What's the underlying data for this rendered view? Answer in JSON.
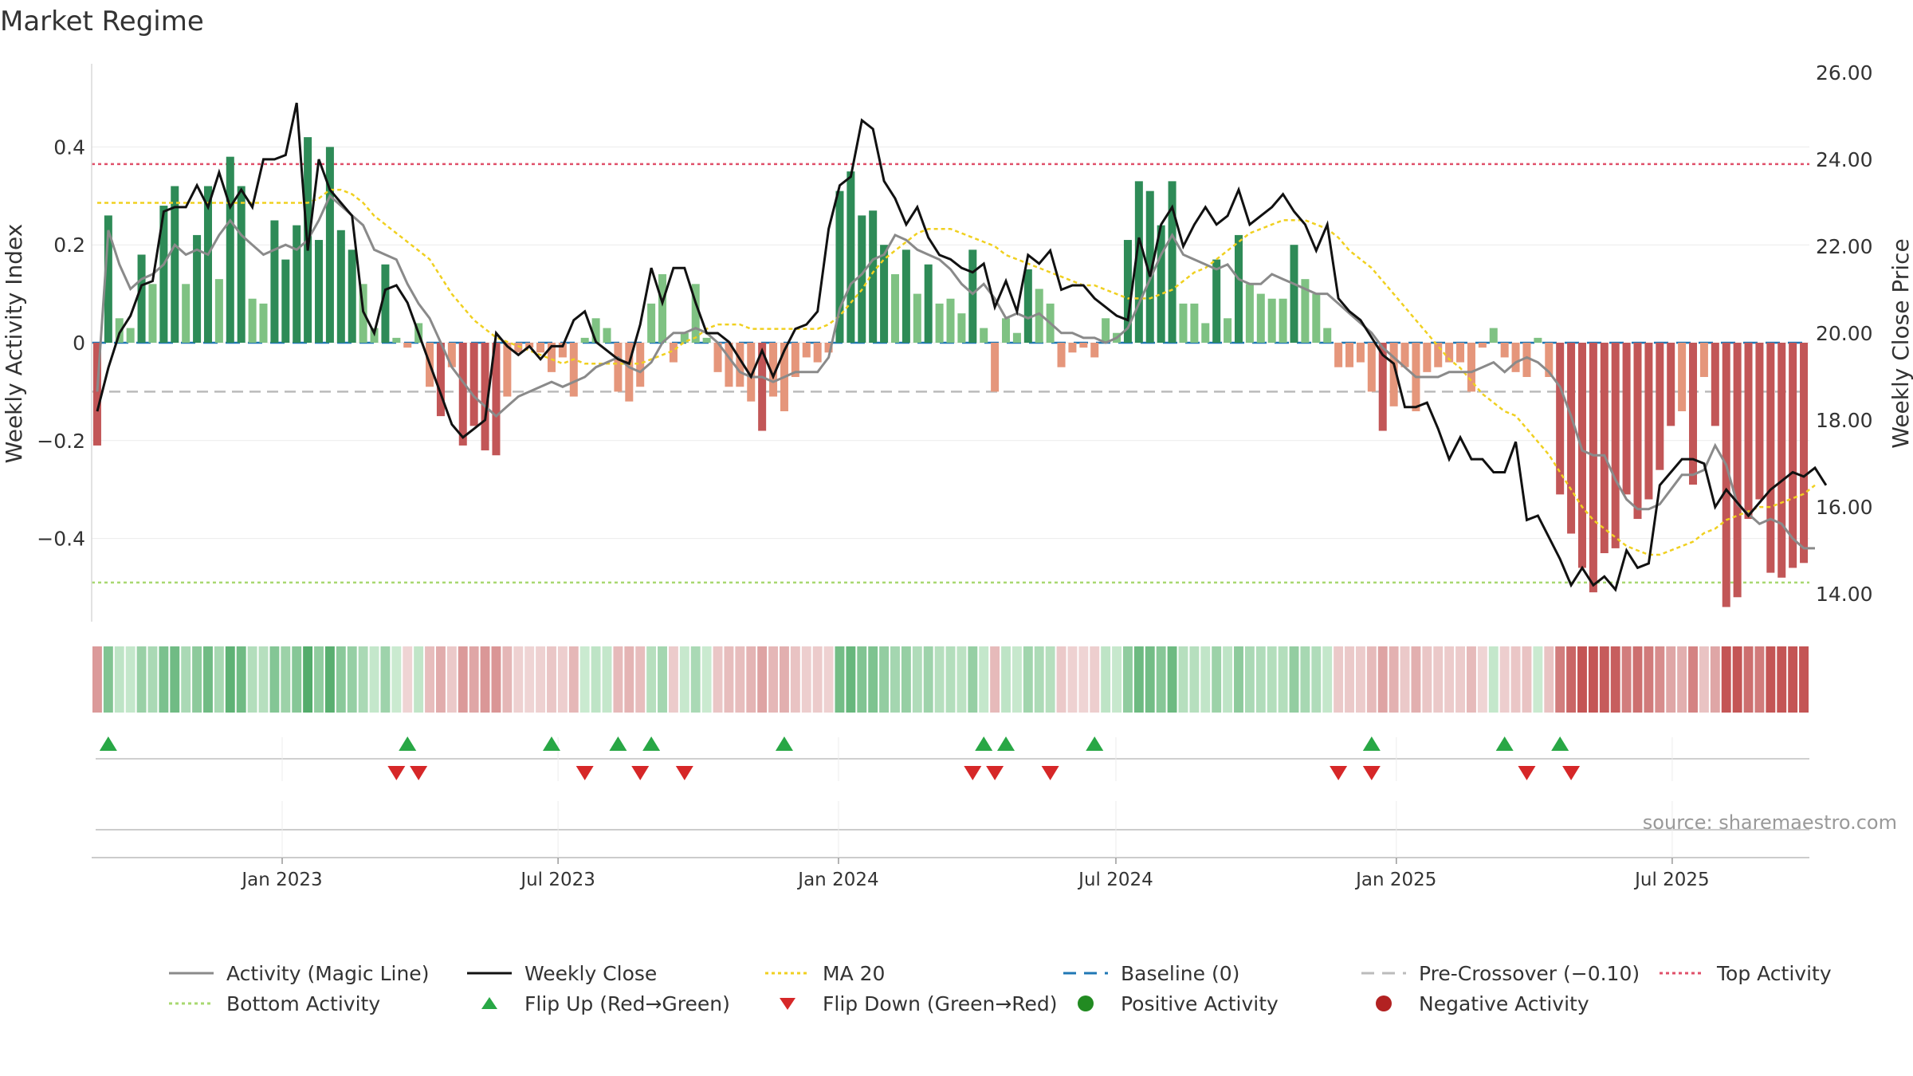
{
  "title": "Market Regime",
  "source": "source: sharemaestro.com",
  "colors": {
    "pos_dark": "#2e8b57",
    "pos_light": "#7fc283",
    "neg_dark": "#c25657",
    "neg_light": "#e5967b",
    "close": "#111111",
    "magic": "#8a8a8a",
    "ma": "#f0d020",
    "baseline": "#1f77b4",
    "precross": "#bbbbbb",
    "top": "#e0506a",
    "bottom": "#a8d870",
    "flip_up": "#28a745",
    "flip_down": "#d62728",
    "pos_dot": "#228b22",
    "neg_dot": "#b22222"
  },
  "legend": [
    {
      "key": "magic",
      "label": "Activity (Magic Line)",
      "style": "line"
    },
    {
      "key": "close",
      "label": "Weekly Close",
      "style": "line"
    },
    {
      "key": "ma",
      "label": "MA 20",
      "style": "dotted"
    },
    {
      "key": "baseline",
      "label": "Baseline (0)",
      "style": "dashed"
    },
    {
      "key": "precross",
      "label": "Pre-Crossover (−0.10)",
      "style": "dashed"
    },
    {
      "key": "top",
      "label": "Top Activity",
      "style": "dotted"
    },
    {
      "key": "bottom",
      "label": "Bottom Activity",
      "style": "dotted"
    },
    {
      "key": "flip_up",
      "label": "Flip Up (Red→Green)",
      "style": "tri-up"
    },
    {
      "key": "flip_down",
      "label": "Flip Down (Green→Red)",
      "style": "tri-down"
    },
    {
      "key": "pos_dot",
      "label": "Positive Activity",
      "style": "dot"
    },
    {
      "key": "neg_dot",
      "label": "Negative Activity",
      "style": "dot"
    }
  ],
  "chart_data": {
    "type": "bar",
    "title": "Market Regime",
    "ylabel_left": "Weekly Activity Index",
    "ylabel_right": "Weekly Close Price",
    "ylim_left": [
      -0.57,
      0.57
    ],
    "ylim_right": [
      13.36,
      26.2
    ],
    "yticks_left": [
      0.4,
      0.2,
      0,
      -0.2,
      -0.4
    ],
    "ytick_labels_left": [
      "0.4",
      "0.2",
      "0",
      "−0.2",
      "−0.4"
    ],
    "yticks_right": [
      26,
      24,
      22,
      20,
      18,
      16,
      14
    ],
    "ytick_labels_right": [
      "26.00",
      "24.00",
      "22.00",
      "20.00",
      "18.00",
      "16.00",
      "14.00"
    ],
    "x_start": "2022-08-29",
    "x_end": "2025-09-29",
    "xticks": [
      {
        "date": "2023-01-01",
        "label": "Jan 2023"
      },
      {
        "date": "2023-07-01",
        "label": "Jul 2023"
      },
      {
        "date": "2024-01-01",
        "label": "Jan 2024"
      },
      {
        "date": "2024-07-01",
        "label": "Jul 2024"
      },
      {
        "date": "2025-01-01",
        "label": "Jan 2025"
      },
      {
        "date": "2025-07-01",
        "label": "Jul 2025"
      }
    ],
    "reference_lines": {
      "baseline": 0,
      "pre_crossover": -0.1,
      "top_activity": 0.365,
      "bottom_activity": -0.49
    },
    "activity": [
      -0.21,
      0.26,
      0.05,
      0.03,
      0.18,
      0.12,
      0.28,
      0.32,
      0.12,
      0.22,
      0.32,
      0.13,
      0.38,
      0.32,
      0.09,
      0.08,
      0.25,
      0.17,
      0.24,
      0.42,
      0.21,
      0.4,
      0.23,
      0.19,
      0.12,
      0.03,
      0.16,
      0.01,
      -0.01,
      0.04,
      -0.09,
      -0.15,
      -0.05,
      -0.21,
      -0.17,
      -0.22,
      -0.23,
      -0.11,
      -0.02,
      -0.01,
      -0.02,
      -0.06,
      -0.03,
      -0.11,
      0.01,
      0.05,
      0.03,
      -0.1,
      -0.12,
      -0.09,
      0.08,
      0.14,
      -0.04,
      0.02,
      0.12,
      0.01,
      -0.06,
      -0.09,
      -0.09,
      -0.12,
      -0.18,
      -0.11,
      -0.14,
      -0.07,
      -0.03,
      -0.04,
      -0.02,
      0.31,
      0.35,
      0.26,
      0.27,
      0.2,
      0.14,
      0.19,
      0.1,
      0.16,
      0.08,
      0.09,
      0.06,
      0.19,
      0.03,
      -0.1,
      0.05,
      0.02,
      0.15,
      0.11,
      0.08,
      -0.05,
      -0.02,
      -0.01,
      -0.03,
      0.05,
      0.02,
      0.21,
      0.33,
      0.31,
      0.24,
      0.33,
      0.08,
      0.08,
      0.04,
      0.17,
      0.05,
      0.22,
      0.12,
      0.1,
      0.09,
      0.09,
      0.2,
      0.13,
      0.1,
      0.03,
      -0.05,
      -0.05,
      -0.04,
      -0.1,
      -0.18,
      -0.13,
      -0.05,
      -0.14,
      -0.06,
      -0.05,
      -0.04,
      -0.04,
      -0.1,
      -0.01,
      0.03,
      -0.03,
      -0.06,
      -0.07,
      0.01,
      -0.07,
      -0.31,
      -0.39,
      -0.46,
      -0.51,
      -0.43,
      -0.42,
      -0.31,
      -0.36,
      -0.32,
      -0.26,
      -0.17,
      -0.14,
      -0.29,
      -0.07,
      -0.17,
      -0.54,
      -0.52,
      -0.36,
      -0.32,
      -0.47,
      -0.48,
      -0.46,
      -0.45
    ],
    "activity_dark_fraction_threshold": 0.15,
    "weekly_close": [
      18.2,
      19.2,
      20.0,
      20.4,
      21.1,
      21.2,
      22.8,
      22.9,
      22.9,
      23.4,
      22.9,
      23.7,
      22.9,
      23.3,
      22.9,
      24.0,
      24.0,
      24.1,
      25.3,
      21.9,
      24.0,
      23.3,
      23.0,
      22.7,
      20.5,
      20.0,
      21.0,
      21.1,
      20.7,
      20.0,
      19.3,
      18.6,
      17.9,
      17.6,
      17.8,
      18.0,
      20.0,
      19.7,
      19.5,
      19.7,
      19.4,
      19.7,
      19.7,
      20.3,
      20.5,
      19.8,
      19.6,
      19.4,
      19.3,
      20.2,
      21.5,
      20.7,
      21.5,
      21.5,
      20.7,
      20.0,
      20.0,
      19.8,
      19.4,
      19.0,
      19.6,
      19.0,
      19.6,
      20.1,
      20.2,
      20.5,
      22.4,
      23.4,
      23.6,
      24.9,
      24.7,
      23.5,
      23.1,
      22.5,
      22.9,
      22.2,
      21.8,
      21.7,
      21.5,
      21.4,
      21.6,
      20.6,
      21.2,
      20.5,
      21.8,
      21.6,
      21.9,
      21.0,
      21.1,
      21.1,
      20.8,
      20.6,
      20.4,
      20.3,
      22.2,
      21.3,
      22.5,
      22.9,
      22.0,
      22.5,
      22.9,
      22.5,
      22.7,
      23.3,
      22.5,
      22.7,
      22.9,
      23.2,
      22.8,
      22.5,
      21.9,
      22.5,
      20.8,
      20.5,
      20.3,
      19.9,
      19.5,
      19.3,
      18.3,
      18.3,
      18.4,
      17.8,
      17.1,
      17.6,
      17.1,
      17.1,
      16.8,
      16.8,
      17.5,
      15.7,
      15.8,
      15.3,
      14.8,
      14.2,
      14.6,
      14.2,
      14.4,
      14.1,
      15.0,
      14.6,
      14.7,
      16.5,
      16.8,
      17.1,
      17.1,
      17.0,
      16.0,
      16.4,
      16.1,
      15.8,
      16.1,
      16.4,
      16.6,
      16.8,
      16.7,
      16.9,
      16.5
    ],
    "ma20": [
      23.0,
      23.0,
      23.0,
      23.0,
      23.0,
      23.0,
      23.0,
      23.0,
      23.0,
      23.0,
      23.0,
      23.0,
      23.0,
      23.0,
      23.0,
      23.0,
      23.0,
      23.0,
      23.0,
      23.0,
      23.1,
      23.3,
      23.3,
      23.2,
      23.0,
      22.7,
      22.5,
      22.3,
      22.1,
      21.9,
      21.7,
      21.3,
      20.9,
      20.6,
      20.3,
      20.1,
      19.9,
      19.8,
      19.7,
      19.6,
      19.5,
      19.4,
      19.3,
      19.4,
      19.3,
      19.3,
      19.3,
      19.3,
      19.3,
      19.3,
      19.4,
      19.5,
      19.6,
      19.8,
      19.9,
      20.1,
      20.2,
      20.2,
      20.2,
      20.1,
      20.1,
      20.1,
      20.1,
      20.1,
      20.1,
      20.1,
      20.2,
      20.4,
      20.7,
      21.0,
      21.4,
      21.7,
      21.9,
      22.1,
      22.3,
      22.4,
      22.4,
      22.4,
      22.3,
      22.2,
      22.1,
      22.0,
      21.8,
      21.7,
      21.6,
      21.5,
      21.4,
      21.3,
      21.2,
      21.1,
      21.1,
      21.0,
      20.9,
      20.8,
      20.8,
      20.8,
      20.9,
      21.0,
      21.2,
      21.4,
      21.5,
      21.7,
      21.9,
      22.1,
      22.3,
      22.4,
      22.5,
      22.6,
      22.6,
      22.6,
      22.5,
      22.4,
      22.2,
      21.9,
      21.7,
      21.5,
      21.2,
      20.9,
      20.6,
      20.3,
      20.0,
      19.7,
      19.4,
      19.2,
      18.9,
      18.6,
      18.4,
      18.2,
      18.1,
      17.8,
      17.5,
      17.2,
      16.8,
      16.4,
      16.0,
      15.7,
      15.5,
      15.3,
      15.1,
      15.0,
      14.9,
      14.9,
      15.0,
      15.1,
      15.2,
      15.4,
      15.5,
      15.7,
      15.8,
      15.9,
      16.0,
      16.0,
      16.1,
      16.2,
      16.3,
      16.5
    ],
    "magic_line": [
      -0.1,
      0.23,
      0.16,
      0.11,
      0.13,
      0.14,
      0.16,
      0.2,
      0.18,
      0.19,
      0.18,
      0.22,
      0.25,
      0.22,
      0.2,
      0.18,
      0.19,
      0.2,
      0.19,
      0.21,
      0.25,
      0.3,
      0.28,
      0.26,
      0.24,
      0.19,
      0.18,
      0.17,
      0.12,
      0.08,
      0.05,
      0.0,
      -0.05,
      -0.08,
      -0.11,
      -0.13,
      -0.15,
      -0.13,
      -0.11,
      -0.1,
      -0.09,
      -0.08,
      -0.09,
      -0.08,
      -0.07,
      -0.05,
      -0.04,
      -0.03,
      -0.05,
      -0.06,
      -0.04,
      0.0,
      0.02,
      0.02,
      0.03,
      0.02,
      0.0,
      -0.03,
      -0.06,
      -0.07,
      -0.07,
      -0.08,
      -0.07,
      -0.06,
      -0.06,
      -0.06,
      -0.03,
      0.07,
      0.12,
      0.14,
      0.17,
      0.18,
      0.22,
      0.21,
      0.19,
      0.18,
      0.17,
      0.15,
      0.12,
      0.1,
      0.12,
      0.09,
      0.05,
      0.06,
      0.05,
      0.06,
      0.04,
      0.02,
      0.02,
      0.01,
      0.01,
      0.0,
      0.01,
      0.03,
      0.08,
      0.13,
      0.18,
      0.22,
      0.18,
      0.17,
      0.16,
      0.15,
      0.16,
      0.13,
      0.12,
      0.12,
      0.14,
      0.13,
      0.12,
      0.11,
      0.1,
      0.1,
      0.08,
      0.06,
      0.04,
      0.02,
      -0.01,
      -0.03,
      -0.05,
      -0.07,
      -0.07,
      -0.07,
      -0.06,
      -0.06,
      -0.06,
      -0.05,
      -0.04,
      -0.06,
      -0.04,
      -0.03,
      -0.04,
      -0.06,
      -0.09,
      -0.15,
      -0.22,
      -0.23,
      -0.23,
      -0.28,
      -0.32,
      -0.34,
      -0.34,
      -0.33,
      -0.3,
      -0.27,
      -0.27,
      -0.26,
      -0.21,
      -0.25,
      -0.33,
      -0.35,
      -0.37,
      -0.36,
      -0.37,
      -0.4,
      -0.42,
      -0.42
    ],
    "regime_strip": [
      -0.21,
      0.26,
      0.05,
      0.03,
      0.18,
      0.12,
      0.28,
      0.32,
      0.12,
      0.22,
      0.32,
      0.13,
      0.38,
      0.32,
      0.09,
      0.08,
      0.25,
      0.17,
      0.24,
      0.42,
      0.21,
      0.4,
      0.23,
      0.19,
      0.12,
      0.03,
      0.16,
      0.01,
      -0.01,
      0.04,
      -0.09,
      -0.15,
      -0.05,
      -0.21,
      -0.17,
      -0.22,
      -0.23,
      -0.11,
      -0.02,
      -0.01,
      -0.02,
      -0.06,
      -0.03,
      -0.11,
      0.01,
      0.05,
      0.03,
      -0.1,
      -0.12,
      -0.09,
      0.08,
      0.14,
      -0.04,
      0.02,
      0.12,
      0.01,
      -0.06,
      -0.09,
      -0.09,
      -0.12,
      -0.18,
      -0.11,
      -0.14,
      -0.07,
      -0.03,
      -0.04,
      -0.02,
      0.31,
      0.35,
      0.26,
      0.27,
      0.2,
      0.14,
      0.19,
      0.1,
      0.16,
      0.08,
      0.09,
      0.06,
      0.19,
      0.03,
      -0.1,
      0.05,
      0.02,
      0.15,
      0.11,
      0.08,
      -0.05,
      -0.02,
      -0.01,
      -0.03,
      0.05,
      0.02,
      0.21,
      0.33,
      0.31,
      0.24,
      0.33,
      0.08,
      0.08,
      0.04,
      0.17,
      0.05,
      0.22,
      0.12,
      0.1,
      0.09,
      0.09,
      0.2,
      0.13,
      0.1,
      0.03,
      -0.05,
      -0.05,
      -0.04,
      -0.1,
      -0.18,
      -0.13,
      -0.05,
      -0.14,
      -0.06,
      -0.05,
      -0.04,
      -0.04,
      -0.1,
      -0.01,
      0.03,
      -0.03,
      -0.06,
      -0.07,
      0.01,
      -0.07,
      -0.31,
      -0.39,
      -0.46,
      -0.51,
      -0.43,
      -0.42,
      -0.31,
      -0.36,
      -0.32,
      -0.26,
      -0.17,
      -0.14,
      -0.29,
      -0.07,
      -0.17,
      -0.54,
      -0.52,
      -0.36,
      -0.32,
      -0.47,
      -0.48,
      -0.46,
      -0.45
    ],
    "flip_up_weeks": [
      1,
      28,
      41,
      47,
      50,
      62,
      80,
      82,
      90,
      115,
      127,
      132
    ],
    "flip_down_weeks": [
      27,
      29,
      44,
      49,
      53,
      79,
      81,
      86,
      112,
      115,
      129,
      133
    ]
  }
}
